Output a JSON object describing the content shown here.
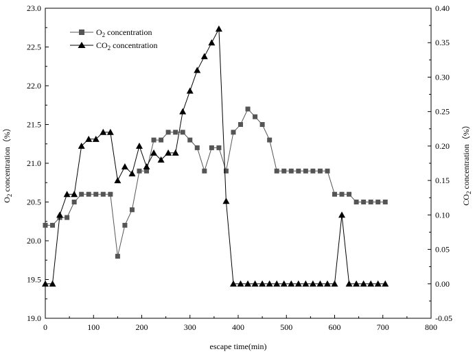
{
  "chart_data": {
    "type": "line",
    "xlabel": "escape time(min)",
    "ylabel_left": {
      "main": "O",
      "sub": "2",
      "rest": " concentration（%）"
    },
    "ylabel_right": {
      "main": "CO",
      "sub": "2",
      "rest": " concentration（%）"
    },
    "xlim": [
      0,
      800
    ],
    "ylim_left": [
      19.0,
      23.0
    ],
    "ylim_right": [
      -0.05,
      0.4
    ],
    "x_ticks": [
      "0",
      "100",
      "200",
      "300",
      "400",
      "500",
      "600",
      "700",
      "800"
    ],
    "y_ticks_left": [
      "19.0",
      "19.5",
      "20.0",
      "20.5",
      "21.0",
      "21.5",
      "22.0",
      "22.5",
      "23.0"
    ],
    "y_ticks_right": [
      "-0.05",
      "0.00",
      "0.05",
      "0.10",
      "0.15",
      "0.20",
      "0.25",
      "0.30",
      "0.35",
      "0.40"
    ],
    "legend_position": "top-left",
    "grid": false,
    "series": [
      {
        "name": {
          "main": "O",
          "sub": "2",
          "rest": " concentration"
        },
        "axis": "left",
        "marker": "square",
        "color": "#555555",
        "points": [
          [
            0,
            20.2
          ],
          [
            15,
            20.2
          ],
          [
            30,
            20.3
          ],
          [
            45,
            20.3
          ],
          [
            60,
            20.5
          ],
          [
            75,
            20.6
          ],
          [
            90,
            20.6
          ],
          [
            105,
            20.6
          ],
          [
            120,
            20.6
          ],
          [
            135,
            20.6
          ],
          [
            150,
            19.8
          ],
          [
            165,
            20.2
          ],
          [
            180,
            20.4
          ],
          [
            195,
            20.9
          ],
          [
            210,
            20.9
          ],
          [
            225,
            21.3
          ],
          [
            240,
            21.3
          ],
          [
            255,
            21.4
          ],
          [
            270,
            21.4
          ],
          [
            285,
            21.4
          ],
          [
            300,
            21.3
          ],
          [
            315,
            21.2
          ],
          [
            330,
            20.9
          ],
          [
            345,
            21.2
          ],
          [
            360,
            21.2
          ],
          [
            375,
            20.9
          ],
          [
            390,
            21.4
          ],
          [
            405,
            21.5
          ],
          [
            420,
            21.7
          ],
          [
            435,
            21.6
          ],
          [
            450,
            21.5
          ],
          [
            465,
            21.3
          ],
          [
            480,
            20.9
          ],
          [
            495,
            20.9
          ],
          [
            510,
            20.9
          ],
          [
            525,
            20.9
          ],
          [
            540,
            20.9
          ],
          [
            555,
            20.9
          ],
          [
            570,
            20.9
          ],
          [
            585,
            20.9
          ],
          [
            600,
            20.6
          ],
          [
            615,
            20.6
          ],
          [
            630,
            20.6
          ],
          [
            645,
            20.5
          ],
          [
            660,
            20.5
          ],
          [
            675,
            20.5
          ],
          [
            690,
            20.5
          ],
          [
            705,
            20.5
          ]
        ]
      },
      {
        "name": {
          "main": "CO",
          "sub": "2",
          "rest": " concentration"
        },
        "axis": "right",
        "marker": "triangle",
        "color": "#000000",
        "points": [
          [
            0,
            0.0
          ],
          [
            15,
            0.0
          ],
          [
            30,
            0.1
          ],
          [
            45,
            0.13
          ],
          [
            60,
            0.13
          ],
          [
            75,
            0.2
          ],
          [
            90,
            0.21
          ],
          [
            105,
            0.21
          ],
          [
            120,
            0.22
          ],
          [
            135,
            0.22
          ],
          [
            150,
            0.15
          ],
          [
            165,
            0.17
          ],
          [
            180,
            0.16
          ],
          [
            195,
            0.2
          ],
          [
            210,
            0.17
          ],
          [
            225,
            0.19
          ],
          [
            240,
            0.18
          ],
          [
            255,
            0.19
          ],
          [
            270,
            0.19
          ],
          [
            285,
            0.25
          ],
          [
            300,
            0.28
          ],
          [
            315,
            0.31
          ],
          [
            330,
            0.33
          ],
          [
            345,
            0.35
          ],
          [
            360,
            0.37
          ],
          [
            375,
            0.12
          ],
          [
            390,
            0.0
          ],
          [
            405,
            0.0
          ],
          [
            420,
            0.0
          ],
          [
            435,
            0.0
          ],
          [
            450,
            0.0
          ],
          [
            465,
            0.0
          ],
          [
            480,
            0.0
          ],
          [
            495,
            0.0
          ],
          [
            510,
            0.0
          ],
          [
            525,
            0.0
          ],
          [
            540,
            0.0
          ],
          [
            555,
            0.0
          ],
          [
            570,
            0.0
          ],
          [
            585,
            0.0
          ],
          [
            600,
            0.0
          ],
          [
            615,
            0.1
          ],
          [
            630,
            0.0
          ],
          [
            645,
            0.0
          ],
          [
            660,
            0.0
          ],
          [
            675,
            0.0
          ],
          [
            690,
            0.0
          ],
          [
            705,
            0.0
          ]
        ]
      }
    ]
  }
}
